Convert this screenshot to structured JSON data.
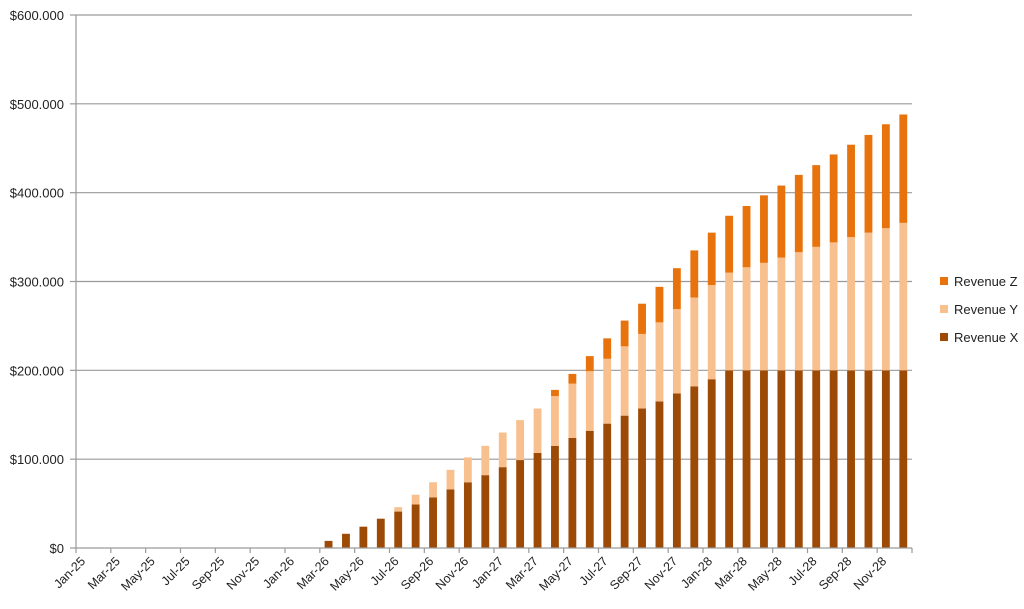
{
  "chart_data": {
    "type": "bar",
    "stacked": true,
    "title": "",
    "xlabel": "",
    "ylabel": "",
    "ylim": [
      0,
      600000
    ],
    "y_ticks": [
      "$0",
      "$100.000",
      "$200.000",
      "$300.000",
      "$400.000",
      "$500.000",
      "$600.000"
    ],
    "y_tick_values": [
      0,
      100000,
      200000,
      300000,
      400000,
      500000,
      600000
    ],
    "grid": true,
    "legend_position": "right",
    "x_tick_labels": [
      "Jan-25",
      "Mar-25",
      "May-25",
      "Jul-25",
      "Sep-25",
      "Nov-25",
      "Jan-26",
      "Mar-26",
      "May-26",
      "Jul-26",
      "Sep-26",
      "Nov-26",
      "Jan-27",
      "Mar-27",
      "May-27",
      "Jul-27",
      "Sep-27",
      "Nov-27",
      "Jan-28",
      "Mar-28",
      "May-28",
      "Jul-28",
      "Sep-28",
      "Nov-28"
    ],
    "categories": [
      "Jan-25",
      "Feb-25",
      "Mar-25",
      "Apr-25",
      "May-25",
      "Jun-25",
      "Jul-25",
      "Aug-25",
      "Sep-25",
      "Oct-25",
      "Nov-25",
      "Dec-25",
      "Jan-26",
      "Feb-26",
      "Mar-26",
      "Apr-26",
      "May-26",
      "Jun-26",
      "Jul-26",
      "Aug-26",
      "Sep-26",
      "Oct-26",
      "Nov-26",
      "Dec-26",
      "Jan-27",
      "Feb-27",
      "Mar-27",
      "Apr-27",
      "May-27",
      "Jun-27",
      "Jul-27",
      "Aug-27",
      "Sep-27",
      "Oct-27",
      "Nov-27",
      "Dec-27",
      "Jan-28",
      "Feb-28",
      "Mar-28",
      "Apr-28",
      "May-28",
      "Jun-28",
      "Jul-28",
      "Aug-28",
      "Sep-28",
      "Oct-28",
      "Nov-28",
      "Dec-28"
    ],
    "series": [
      {
        "name": "Revenue X",
        "color": "#9C4A06",
        "values": [
          0,
          0,
          0,
          0,
          0,
          0,
          0,
          0,
          0,
          0,
          0,
          0,
          0,
          0,
          8000,
          16000,
          24000,
          33000,
          41000,
          49000,
          57000,
          66000,
          74000,
          82000,
          91000,
          99000,
          107000,
          115000,
          124000,
          132000,
          140000,
          149000,
          157000,
          165000,
          174000,
          182000,
          190000,
          200000,
          200000,
          200000,
          200000,
          200000,
          200000,
          200000,
          200000,
          200000,
          200000,
          200000
        ]
      },
      {
        "name": "Revenue Y",
        "color": "#F9C08F",
        "values": [
          0,
          0,
          0,
          0,
          0,
          0,
          0,
          0,
          0,
          0,
          0,
          0,
          0,
          0,
          0,
          0,
          0,
          0,
          5000,
          11000,
          17000,
          22000,
          28000,
          33000,
          39000,
          45000,
          50000,
          56000,
          61000,
          67000,
          73000,
          78000,
          84000,
          89000,
          95000,
          100000,
          106000,
          110000,
          116000,
          121000,
          127000,
          133000,
          139000,
          144000,
          150000,
          155000,
          160000,
          166000
        ]
      },
      {
        "name": "Revenue Z",
        "color": "#E8720C",
        "values": [
          0,
          0,
          0,
          0,
          0,
          0,
          0,
          0,
          0,
          0,
          0,
          0,
          0,
          0,
          0,
          0,
          0,
          0,
          0,
          0,
          0,
          0,
          0,
          0,
          0,
          0,
          0,
          7000,
          11000,
          17000,
          23000,
          29000,
          34000,
          40000,
          46000,
          53000,
          59000,
          64000,
          69000,
          76000,
          81000,
          87000,
          92000,
          99000,
          104000,
          110000,
          117000,
          122000
        ]
      }
    ]
  },
  "legend": {
    "items": [
      {
        "label": "Revenue Z",
        "color": "#E8720C"
      },
      {
        "label": "Revenue Y",
        "color": "#F9C08F"
      },
      {
        "label": "Revenue X",
        "color": "#9C4A06"
      }
    ]
  }
}
